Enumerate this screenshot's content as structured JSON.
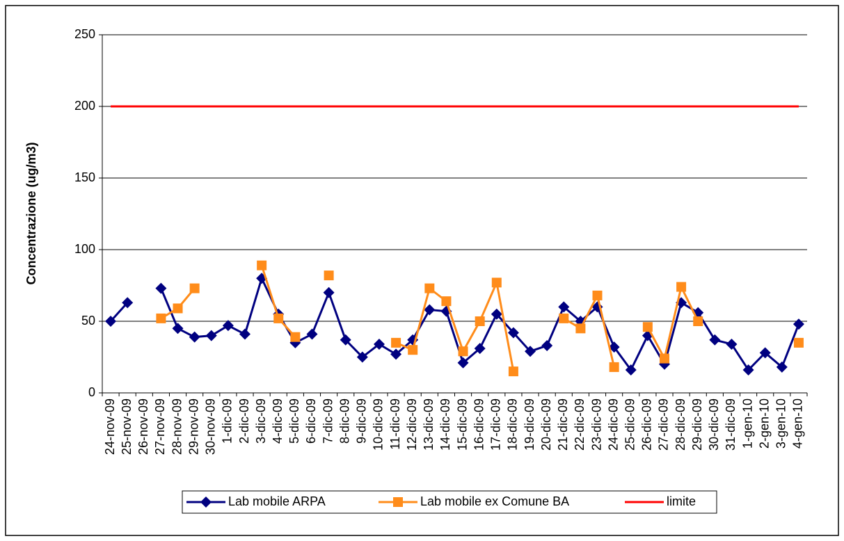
{
  "chart_data": {
    "type": "line",
    "y_label": "Concentrazione (ug/m3)",
    "categories": [
      "24-nov-09",
      "25-nov-09",
      "26-nov-09",
      "27-nov-09",
      "28-nov-09",
      "29-nov-09",
      "30-nov-09",
      "1-dic-09",
      "2-dic-09",
      "3-dic-09",
      "4-dic-09",
      "5-dic-09",
      "6-dic-09",
      "7-dic-09",
      "8-dic-09",
      "9-dic-09",
      "10-dic-09",
      "11-dic-09",
      "12-dic-09",
      "13-dic-09",
      "14-dic-09",
      "15-dic-09",
      "16-dic-09",
      "17-dic-09",
      "18-dic-09",
      "19-dic-09",
      "20-dic-09",
      "21-dic-09",
      "22-dic-09",
      "23-dic-09",
      "24-dic-09",
      "25-dic-09",
      "26-dic-09",
      "27-dic-09",
      "28-dic-09",
      "29-dic-09",
      "30-dic-09",
      "31-dic-09",
      "1-gen-10",
      "2-gen-10",
      "3-gen-10",
      "4-gen-10"
    ],
    "series": [
      {
        "name": "Lab mobile ARPA",
        "color": "#000080",
        "marker": "diamond",
        "values": [
          50,
          63,
          null,
          73,
          45,
          39,
          40,
          47,
          41,
          80,
          55,
          35,
          41,
          70,
          37,
          25,
          34,
          27,
          37,
          58,
          57,
          21,
          31,
          55,
          42,
          29,
          33,
          60,
          50,
          60,
          32,
          16,
          40,
          20,
          63,
          56,
          37,
          34,
          16,
          28,
          18,
          48
        ]
      },
      {
        "name": "Lab mobile ex Comune BA",
        "color": "#ff8c1a",
        "marker": "square",
        "values": [
          null,
          null,
          null,
          52,
          59,
          73,
          null,
          null,
          null,
          89,
          52,
          39,
          null,
          82,
          null,
          null,
          null,
          35,
          30,
          73,
          64,
          29,
          50,
          77,
          15,
          null,
          null,
          52,
          45,
          68,
          18,
          null,
          46,
          24,
          74,
          50,
          null,
          null,
          null,
          null,
          null,
          35
        ]
      },
      {
        "name": "limite",
        "color": "#ff0000",
        "marker": "none",
        "values": [
          200,
          200,
          200,
          200,
          200,
          200,
          200,
          200,
          200,
          200,
          200,
          200,
          200,
          200,
          200,
          200,
          200,
          200,
          200,
          200,
          200,
          200,
          200,
          200,
          200,
          200,
          200,
          200,
          200,
          200,
          200,
          200,
          200,
          200,
          200,
          200,
          200,
          200,
          200,
          200,
          200,
          200
        ]
      }
    ],
    "ylim": [
      0,
      250
    ],
    "yticks": [
      0,
      50,
      100,
      150,
      200,
      250
    ],
    "grid": true,
    "legend": "bottom"
  }
}
